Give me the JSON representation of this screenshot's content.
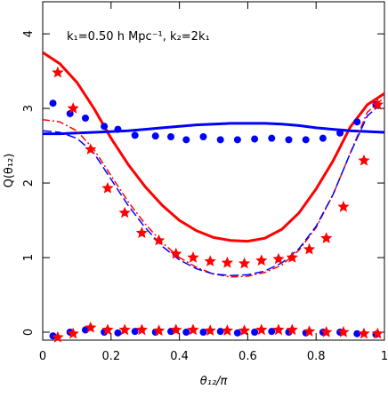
{
  "chart_data": {
    "type": "scatter",
    "annotation": "k₁=0.50 h Mpc⁻¹, k₂=2k₁",
    "xlabel": "θ₁₂/π",
    "ylabel": "Q(θ₁₂)",
    "xlim": [
      0,
      1
    ],
    "ylim": [
      -0.107,
      4.43
    ],
    "xticks": [
      0,
      0.2,
      0.4,
      0.6,
      0.8,
      1
    ],
    "yticks": [
      0,
      1,
      2,
      3,
      4
    ],
    "series": [
      {
        "mode": "line",
        "color": "#ff0000",
        "width": 3,
        "dash": "none",
        "x": [
          0,
          0.05,
          0.1,
          0.15,
          0.2,
          0.25,
          0.3,
          0.35,
          0.4,
          0.45,
          0.5,
          0.55,
          0.6,
          0.65,
          0.7,
          0.75,
          0.8,
          0.85,
          0.9,
          0.95,
          1
        ],
        "values": [
          3.75,
          3.6,
          3.35,
          3.0,
          2.6,
          2.25,
          1.95,
          1.7,
          1.5,
          1.36,
          1.27,
          1.23,
          1.22,
          1.26,
          1.38,
          1.6,
          1.92,
          2.3,
          2.75,
          3.05,
          3.2
        ]
      },
      {
        "mode": "line",
        "color": "#0000ff",
        "width": 3,
        "dash": "none",
        "x": [
          0,
          0.05,
          0.1,
          0.15,
          0.2,
          0.25,
          0.3,
          0.35,
          0.4,
          0.45,
          0.5,
          0.55,
          0.6,
          0.65,
          0.7,
          0.75,
          0.8,
          0.85,
          0.9,
          0.95,
          1
        ],
        "values": [
          2.66,
          2.66,
          2.67,
          2.68,
          2.69,
          2.7,
          2.72,
          2.74,
          2.76,
          2.78,
          2.79,
          2.8,
          2.8,
          2.8,
          2.79,
          2.77,
          2.74,
          2.72,
          2.7,
          2.69,
          2.68
        ]
      },
      {
        "mode": "line",
        "color": "#ff0000",
        "width": 1.5,
        "dash": "8 3 2 3",
        "x": [
          0,
          0.05,
          0.1,
          0.15,
          0.2,
          0.25,
          0.3,
          0.35,
          0.4,
          0.45,
          0.5,
          0.55,
          0.6,
          0.65,
          0.7,
          0.75,
          0.8,
          0.85,
          0.9,
          0.95,
          1
        ],
        "values": [
          2.85,
          2.82,
          2.7,
          2.45,
          2.1,
          1.75,
          1.45,
          1.2,
          1.0,
          0.87,
          0.78,
          0.74,
          0.75,
          0.8,
          0.9,
          1.1,
          1.4,
          1.85,
          2.4,
          2.95,
          3.15
        ]
      },
      {
        "mode": "line",
        "color": "#0000ff",
        "width": 1.5,
        "dash": "10 4",
        "x": [
          0,
          0.05,
          0.1,
          0.15,
          0.2,
          0.25,
          0.3,
          0.35,
          0.4,
          0.45,
          0.5,
          0.55,
          0.6,
          0.65,
          0.7,
          0.75,
          0.8,
          0.85,
          0.9,
          0.95,
          1
        ],
        "values": [
          2.7,
          2.68,
          2.6,
          2.4,
          2.05,
          1.7,
          1.4,
          1.15,
          0.97,
          0.85,
          0.78,
          0.76,
          0.77,
          0.82,
          0.93,
          1.12,
          1.42,
          1.85,
          2.4,
          2.9,
          3.1
        ]
      },
      {
        "mode": "points",
        "marker": "circle",
        "color": "#0000ff",
        "x": [
          0.03,
          0.08,
          0.125,
          0.18,
          0.22,
          0.27,
          0.33,
          0.375,
          0.42,
          0.47,
          0.52,
          0.57,
          0.62,
          0.67,
          0.72,
          0.77,
          0.82,
          0.87,
          0.92,
          0.975
        ],
        "values": [
          3.07,
          2.93,
          2.87,
          2.76,
          2.72,
          2.64,
          2.63,
          2.62,
          2.58,
          2.62,
          2.58,
          2.58,
          2.59,
          2.6,
          2.58,
          2.58,
          2.6,
          2.67,
          2.82,
          3.05
        ]
      },
      {
        "mode": "points",
        "marker": "star",
        "color": "#ff0000",
        "x": [
          0.044,
          0.089,
          0.14,
          0.19,
          0.24,
          0.29,
          0.34,
          0.39,
          0.44,
          0.49,
          0.54,
          0.59,
          0.64,
          0.69,
          0.73,
          0.78,
          0.83,
          0.88,
          0.94,
          0.98
        ],
        "values": [
          3.48,
          3.0,
          2.45,
          1.93,
          1.6,
          1.33,
          1.23,
          1.05,
          1.0,
          0.95,
          0.93,
          0.92,
          0.96,
          0.98,
          1.0,
          1.11,
          1.26,
          1.68,
          2.3,
          3.05
        ]
      },
      {
        "mode": "points",
        "marker": "circle",
        "color": "#0000ff",
        "x": [
          0.03,
          0.08,
          0.125,
          0.18,
          0.22,
          0.27,
          0.33,
          0.375,
          0.42,
          0.47,
          0.52,
          0.57,
          0.62,
          0.67,
          0.72,
          0.77,
          0.82,
          0.87,
          0.92,
          0.975
        ],
        "values": [
          -0.05,
          0.0,
          0.03,
          0.0,
          -0.01,
          0.01,
          0.0,
          0.01,
          0.0,
          0.0,
          0.01,
          -0.01,
          0.0,
          0.01,
          0.0,
          -0.01,
          0.0,
          0.0,
          -0.02,
          -0.03
        ]
      },
      {
        "mode": "points",
        "marker": "star",
        "color": "#ff0000",
        "x": [
          0.044,
          0.089,
          0.14,
          0.19,
          0.24,
          0.29,
          0.34,
          0.39,
          0.44,
          0.49,
          0.54,
          0.59,
          0.64,
          0.69,
          0.73,
          0.78,
          0.83,
          0.88,
          0.94,
          0.98
        ],
        "values": [
          -0.07,
          -0.02,
          0.06,
          0.03,
          0.03,
          0.03,
          0.02,
          0.03,
          0.03,
          0.02,
          0.02,
          0.02,
          0.03,
          0.03,
          0.03,
          0.01,
          0.0,
          0.0,
          -0.02,
          -0.02
        ]
      }
    ]
  }
}
